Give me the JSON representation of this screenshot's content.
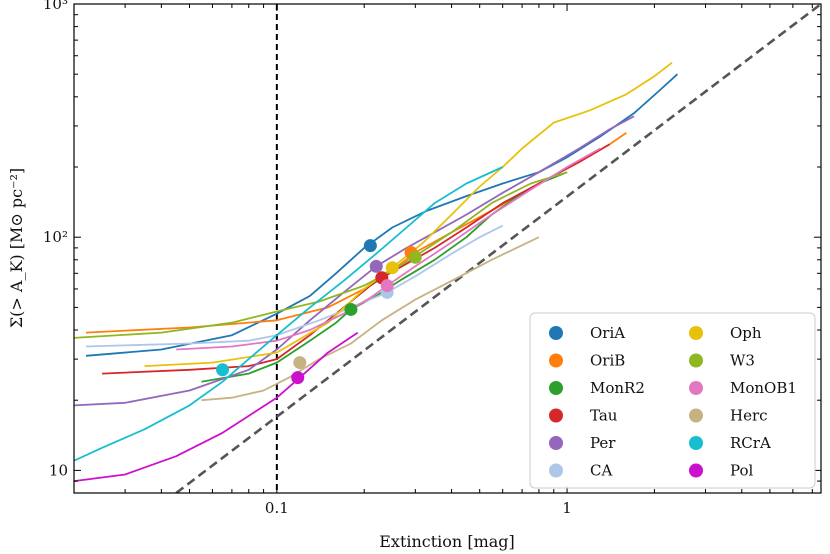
{
  "chart_data": {
    "type": "line",
    "xscale": "log",
    "yscale": "log",
    "xlim": [
      0.02,
      7.5
    ],
    "ylim": [
      8,
      1000
    ],
    "xlabel": "Extinction [mag]",
    "ylabel": "Σ(> A_K) [M⊙ pc⁻²]",
    "x_ticks": [
      {
        "value": 0.1,
        "label": "0.1"
      },
      {
        "value": 1,
        "label": "1"
      }
    ],
    "y_ticks": [
      {
        "value": 10,
        "label": "10"
      },
      {
        "value": 100,
        "label": "10²"
      },
      {
        "value": 1000,
        "label": "10³"
      }
    ],
    "grid": false,
    "legend_position": "bottom-right",
    "reference_lines": [
      {
        "kind": "vertical",
        "x": 0.1,
        "style": "dashed",
        "color": "#000000"
      },
      {
        "kind": "diagonal",
        "style": "dashed",
        "color": "#555555",
        "points": [
          [
            0.045,
            8
          ],
          [
            7.5,
            1000
          ]
        ]
      }
    ],
    "series": [
      {
        "name": "OriA",
        "color": "#1f77b4",
        "x": [
          0.022,
          0.04,
          0.07,
          0.1,
          0.13,
          0.16,
          0.2,
          0.25,
          0.33,
          0.45,
          0.6,
          0.8,
          1.0,
          1.3,
          1.7,
          2.1,
          2.4
        ],
        "y": [
          31,
          33,
          38,
          47,
          56,
          70,
          90,
          110,
          130,
          150,
          170,
          190,
          220,
          270,
          340,
          430,
          500
        ],
        "marker": [
          0.21,
          92
        ]
      },
      {
        "name": "OriB",
        "color": "#ff7f0e",
        "x": [
          0.022,
          0.05,
          0.1,
          0.15,
          0.2,
          0.25,
          0.3,
          0.4,
          0.55,
          0.8,
          1.1,
          1.4,
          1.6
        ],
        "y": [
          39,
          41,
          44,
          50,
          60,
          72,
          86,
          105,
          130,
          170,
          210,
          250,
          280
        ],
        "marker": [
          0.29,
          86
        ]
      },
      {
        "name": "MonR2",
        "color": "#2ca02c",
        "x": [
          0.055,
          0.08,
          0.1,
          0.13,
          0.16,
          0.18,
          0.22,
          0.27,
          0.35,
          0.45,
          0.55,
          0.65,
          0.8,
          1.0
        ],
        "y": [
          24,
          26,
          29,
          36,
          43,
          49,
          56,
          66,
          80,
          100,
          125,
          145,
          170,
          190
        ],
        "marker": [
          0.18,
          49
        ]
      },
      {
        "name": "Tau",
        "color": "#d62728",
        "x": [
          0.025,
          0.05,
          0.08,
          0.1,
          0.13,
          0.17,
          0.21,
          0.23,
          0.28,
          0.35,
          0.45,
          0.6,
          0.8,
          1.1,
          1.4
        ],
        "y": [
          26,
          27,
          28,
          30,
          38,
          50,
          62,
          67,
          77,
          90,
          110,
          140,
          170,
          210,
          250
        ],
        "marker": [
          0.23,
          67
        ]
      },
      {
        "name": "Per",
        "color": "#9467bd",
        "x": [
          0.02,
          0.03,
          0.05,
          0.08,
          0.1,
          0.13,
          0.17,
          0.22,
          0.28,
          0.35,
          0.45,
          0.6,
          0.8,
          1.1,
          1.4,
          1.7
        ],
        "y": [
          19,
          19.5,
          22,
          27,
          33,
          44,
          58,
          75,
          90,
          105,
          125,
          155,
          190,
          240,
          290,
          330
        ],
        "marker": [
          0.22,
          75
        ]
      },
      {
        "name": "CA",
        "color": "#aec7e8",
        "x": [
          0.022,
          0.05,
          0.08,
          0.1,
          0.14,
          0.18,
          0.24,
          0.3,
          0.4,
          0.5,
          0.6
        ],
        "y": [
          34,
          35,
          36,
          38,
          44,
          50,
          58,
          68,
          85,
          100,
          112
        ],
        "marker": [
          0.24,
          58
        ]
      },
      {
        "name": "Oph",
        "color": "#e8c10a",
        "x": [
          0.035,
          0.06,
          0.1,
          0.15,
          0.2,
          0.25,
          0.32,
          0.4,
          0.5,
          0.6,
          0.7,
          0.9,
          1.2,
          1.6,
          2.0,
          2.3
        ],
        "y": [
          28,
          29,
          32,
          43,
          60,
          74,
          95,
          125,
          165,
          200,
          240,
          310,
          350,
          410,
          490,
          560
        ],
        "marker": [
          0.25,
          74
        ]
      },
      {
        "name": "W3",
        "color": "#8fb820",
        "x": [
          0.02,
          0.04,
          0.07,
          0.1,
          0.14,
          0.2,
          0.25,
          0.3,
          0.4,
          0.55,
          0.75,
          1.0
        ],
        "y": [
          37,
          39,
          43,
          48,
          53,
          62,
          72,
          83,
          105,
          140,
          170,
          190
        ],
        "marker": [
          0.3,
          82
        ]
      },
      {
        "name": "MonOB1",
        "color": "#e377c2",
        "x": [
          0.045,
          0.07,
          0.1,
          0.13,
          0.17,
          0.21,
          0.24,
          0.3,
          0.4,
          0.55,
          0.75,
          1.0,
          1.3
        ],
        "y": [
          33,
          34,
          36,
          40,
          47,
          55,
          62,
          75,
          95,
          125,
          160,
          200,
          240
        ],
        "marker": [
          0.24,
          62
        ]
      },
      {
        "name": "Herc",
        "color": "#c7b382",
        "x": [
          0.055,
          0.07,
          0.09,
          0.11,
          0.14,
          0.18,
          0.23,
          0.3,
          0.4,
          0.55,
          0.8
        ],
        "y": [
          20,
          20.5,
          22,
          25,
          30,
          35,
          44,
          54,
          65,
          80,
          100
        ],
        "marker": [
          0.12,
          29
        ]
      },
      {
        "name": "RCrA",
        "color": "#17becf",
        "x": [
          0.02,
          0.025,
          0.035,
          0.05,
          0.065,
          0.08,
          0.1,
          0.13,
          0.17,
          0.22,
          0.28,
          0.35,
          0.45,
          0.6
        ],
        "y": [
          11,
          12.5,
          15,
          19,
          24,
          30,
          38,
          50,
          65,
          85,
          110,
          140,
          170,
          200
        ],
        "marker": [
          0.065,
          27
        ]
      },
      {
        "name": "Pol",
        "color": "#cc11cc",
        "x": [
          0.02,
          0.03,
          0.045,
          0.065,
          0.085,
          0.1,
          0.12,
          0.15,
          0.19
        ],
        "y": [
          9,
          9.6,
          11.5,
          14.5,
          18,
          20.5,
          25,
          32,
          39
        ],
        "marker": [
          0.118,
          25
        ]
      }
    ]
  }
}
